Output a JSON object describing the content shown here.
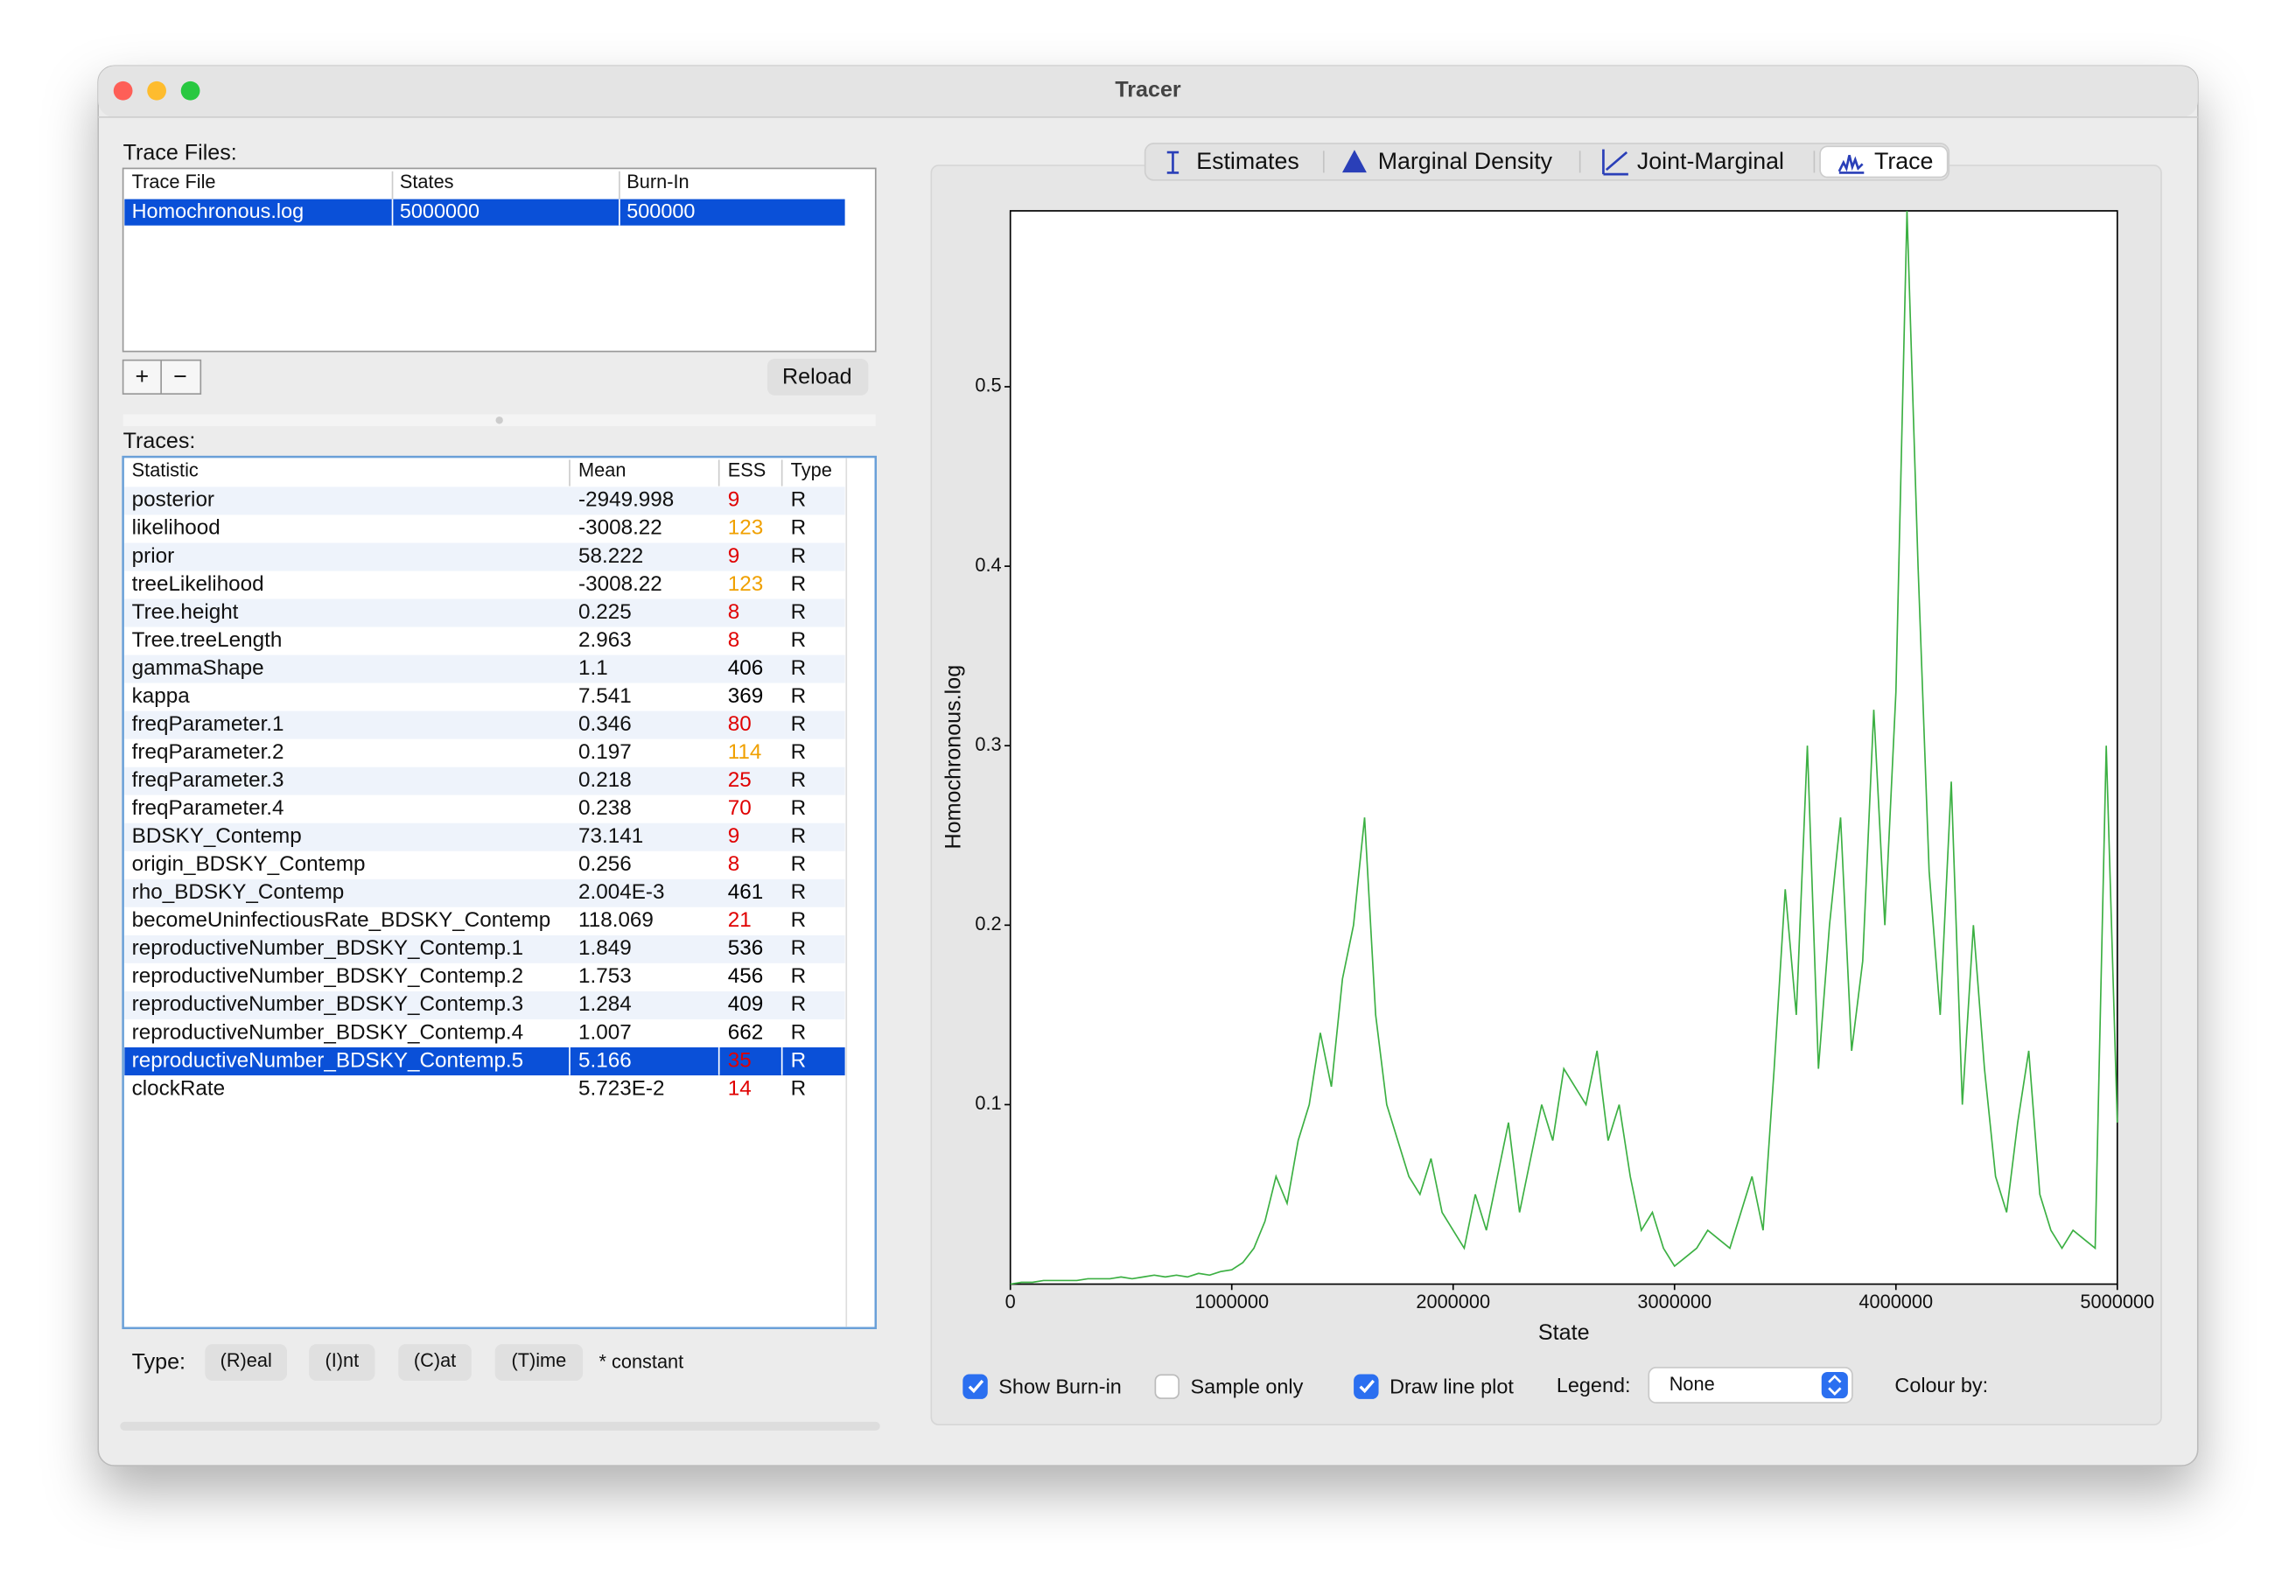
{
  "window": {
    "title": "Tracer"
  },
  "trace_files": {
    "label": "Trace Files:",
    "columns": [
      "Trace File",
      "States",
      "Burn-In"
    ],
    "rows": [
      [
        "Homochronous.log",
        "5000000",
        "500000"
      ]
    ],
    "buttons": [
      "+",
      "−"
    ],
    "reload": "Reload"
  },
  "traces": {
    "label": "Traces:",
    "columns": [
      "Statistic",
      "Mean",
      "ESS",
      "Type"
    ],
    "selected": 20,
    "rows": [
      [
        "posterior",
        "-2949.998",
        "9",
        "R"
      ],
      [
        "likelihood",
        "-3008.22",
        "123",
        "R"
      ],
      [
        "prior",
        "58.222",
        "9",
        "R"
      ],
      [
        "treeLikelihood",
        "-3008.22",
        "123",
        "R"
      ],
      [
        "Tree.height",
        "0.225",
        "8",
        "R"
      ],
      [
        "Tree.treeLength",
        "2.963",
        "8",
        "R"
      ],
      [
        "gammaShape",
        "1.1",
        "406",
        "R"
      ],
      [
        "kappa",
        "7.541",
        "369",
        "R"
      ],
      [
        "freqParameter.1",
        "0.346",
        "80",
        "R"
      ],
      [
        "freqParameter.2",
        "0.197",
        "114",
        "R"
      ],
      [
        "freqParameter.3",
        "0.218",
        "25",
        "R"
      ],
      [
        "freqParameter.4",
        "0.238",
        "70",
        "R"
      ],
      [
        "BDSKY_Contemp",
        "73.141",
        "9",
        "R"
      ],
      [
        "origin_BDSKY_Contemp",
        "0.256",
        "8",
        "R"
      ],
      [
        "rho_BDSKY_Contemp",
        "2.004E-3",
        "461",
        "R"
      ],
      [
        "becomeUninfectiousRate_BDSKY_Contemp",
        "118.069",
        "21",
        "R"
      ],
      [
        "reproductiveNumber_BDSKY_Contemp.1",
        "1.849",
        "536",
        "R"
      ],
      [
        "reproductiveNumber_BDSKY_Contemp.2",
        "1.753",
        "456",
        "R"
      ],
      [
        "reproductiveNumber_BDSKY_Contemp.3",
        "1.284",
        "409",
        "R"
      ],
      [
        "reproductiveNumber_BDSKY_Contemp.4",
        "1.007",
        "662",
        "R"
      ],
      [
        "reproductiveNumber_BDSKY_Contemp.5",
        "5.166",
        "35",
        "R"
      ],
      [
        "clockRate",
        "5.723E-2",
        "14",
        "R"
      ]
    ],
    "ess_colors": [
      "#e00000",
      "#f0a000",
      "#e00000",
      "#f0a000",
      "#e00000",
      "#e00000",
      "#000000",
      "#000000",
      "#e00000",
      "#f0a000",
      "#e00000",
      "#e00000",
      "#e00000",
      "#e00000",
      "#000000",
      "#e00000",
      "#000000",
      "#000000",
      "#000000",
      "#000000",
      "#e00000",
      "#e00000"
    ]
  },
  "type_bar": {
    "label": "Type:",
    "buttons": [
      "(R)eal",
      "(I)nt",
      "(C)at",
      "(T)ime"
    ],
    "note": "* constant"
  },
  "tabs": {
    "items": [
      "Estimates",
      "Marginal Density",
      "Joint-Marginal",
      "Trace"
    ],
    "selected": 3
  },
  "chart_data": {
    "type": "line",
    "x_label": "State",
    "y_label": "Homochronous.log",
    "color": "#3cb043",
    "x": [
      0,
      50000,
      100000,
      150000,
      200000,
      250000,
      300000,
      350000,
      400000,
      450000,
      500000,
      550000,
      600000,
      650000,
      700000,
      750000,
      800000,
      850000,
      900000,
      950000,
      1000000,
      1050000,
      1100000,
      1150000,
      1200000,
      1250000,
      1300000,
      1350000,
      1400000,
      1450000,
      1500000,
      1550000,
      1600000,
      1650000,
      1700000,
      1750000,
      1800000,
      1850000,
      1900000,
      1950000,
      2000000,
      2050000,
      2100000,
      2150000,
      2200000,
      2250000,
      2300000,
      2350000,
      2400000,
      2450000,
      2500000,
      2550000,
      2600000,
      2650000,
      2700000,
      2750000,
      2800000,
      2850000,
      2900000,
      2950000,
      3000000,
      3050000,
      3100000,
      3150000,
      3200000,
      3250000,
      3300000,
      3350000,
      3400000,
      3450000,
      3500000,
      3550000,
      3600000,
      3650000,
      3700000,
      3750000,
      3800000,
      3850000,
      3900000,
      3950000,
      4000000,
      4050000,
      4100000,
      4150000,
      4200000,
      4250000,
      4300000,
      4350000,
      4400000,
      4450000,
      4500000,
      4550000,
      4600000,
      4650000,
      4700000,
      4750000,
      4800000,
      4850000,
      4900000,
      4950000,
      5000000
    ],
    "values": [
      0,
      0.001,
      0.001,
      0.002,
      0.002,
      0.002,
      0.002,
      0.003,
      0.003,
      0.003,
      0.004,
      0.003,
      0.004,
      0.005,
      0.004,
      0.005,
      0.004,
      0.006,
      0.005,
      0.007,
      0.008,
      0.012,
      0.02,
      0.035,
      0.06,
      0.045,
      0.08,
      0.1,
      0.14,
      0.11,
      0.17,
      0.2,
      0.26,
      0.15,
      0.1,
      0.08,
      0.06,
      0.05,
      0.07,
      0.04,
      0.03,
      0.02,
      0.05,
      0.03,
      0.06,
      0.09,
      0.04,
      0.07,
      0.1,
      0.08,
      0.12,
      0.11,
      0.1,
      0.13,
      0.08,
      0.1,
      0.06,
      0.03,
      0.04,
      0.02,
      0.01,
      0.015,
      0.02,
      0.03,
      0.025,
      0.02,
      0.04,
      0.06,
      0.03,
      0.12,
      0.22,
      0.15,
      0.3,
      0.12,
      0.2,
      0.26,
      0.13,
      0.18,
      0.32,
      0.2,
      0.33,
      0.598,
      0.4,
      0.23,
      0.15,
      0.28,
      0.1,
      0.2,
      0.12,
      0.06,
      0.04,
      0.09,
      0.13,
      0.05,
      0.03,
      0.02,
      0.03,
      0.025,
      0.02,
      0.3,
      0.09
    ],
    "xlim": [
      0,
      5000000
    ],
    "ylim": [
      0,
      0.598
    ],
    "xticks": [
      0,
      1000000,
      2000000,
      3000000,
      4000000,
      5000000
    ],
    "yticks": [
      0.1,
      0.2,
      0.3,
      0.4,
      0.5
    ]
  },
  "controls": {
    "checkboxes": [
      {
        "label": "Show Burn-in",
        "checked": true
      },
      {
        "label": "Sample only",
        "checked": false
      },
      {
        "label": "Draw line plot",
        "checked": true
      }
    ],
    "legend_label": "Legend:",
    "legend_value": "None",
    "colour_by": "Colour by:"
  }
}
